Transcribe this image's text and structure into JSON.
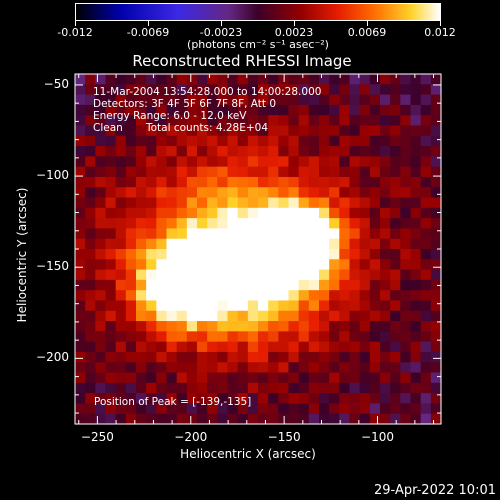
{
  "colorbar": {
    "tick_labels": [
      "-0.012",
      "-0.0069",
      "-0.0023",
      "0.0023",
      "0.0069",
      "0.012"
    ],
    "unit": "(photons cm⁻² s⁻¹ asec⁻²)",
    "min": -0.012,
    "max": 0.012
  },
  "chart_data": {
    "type": "heatmap",
    "title": "Reconstructed RHESSI Image",
    "xlabel": "Heliocentric X (arcsec)",
    "ylabel": "Heliocentric Y (arcsec)",
    "xlim": [
      -262,
      -66
    ],
    "ylim": [
      -236,
      -44
    ],
    "x_ticks": [
      -250,
      -200,
      -150,
      -100
    ],
    "y_ticks": [
      -50,
      -100,
      -150,
      -200
    ],
    "x_tick_labels": [
      "−250",
      "−200",
      "−150",
      "−100"
    ],
    "y_tick_labels": [
      "−50",
      "−100",
      "−150",
      "−200"
    ],
    "colormap": "black-blue-purple-red-orange-yellow-white",
    "sources": [
      {
        "x": -139,
        "y": -135,
        "peak": 0.012,
        "width": 14
      },
      {
        "x": -208,
        "y": -162,
        "peak": 0.0105,
        "width": 16
      },
      {
        "x": -180,
        "y": -140,
        "peak": 0.0075,
        "width": 28
      },
      {
        "x": -160,
        "y": -155,
        "peak": 0.006,
        "width": 22
      }
    ],
    "annotations": {
      "line1": "11-Mar-2004 13:54:28.000 to 14:00:28.000",
      "line2": "Detectors: 3F 4F 5F 6F 7F 8F, Att 0",
      "line3": "Energy Range: 6.0 - 12.0 keV",
      "line4_method": "Clean",
      "line4_counts": "Total counts: 4.28E+04",
      "peak": "Position of Peak = [-139,-135]"
    }
  },
  "footer": {
    "timestamp": "29-Apr-2022 10:01"
  }
}
